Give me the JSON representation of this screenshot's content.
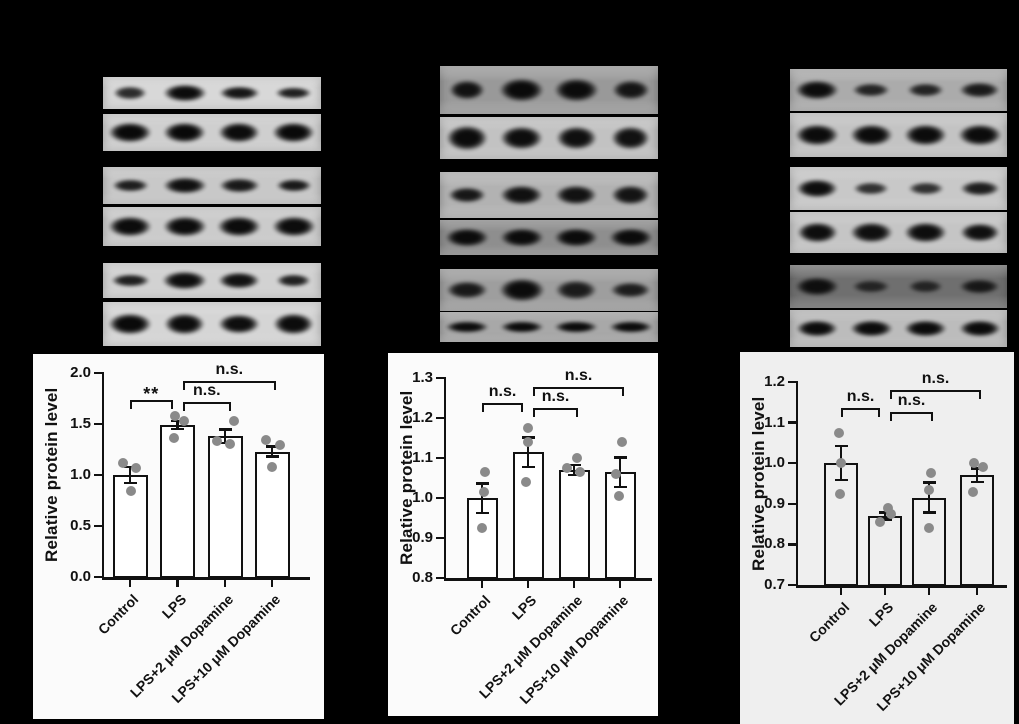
{
  "figure": {
    "background": "#000000"
  },
  "blots": {
    "lane_count": 4,
    "columns": [
      {
        "name": "left",
        "strips": [
          {
            "role": "target-protein",
            "bg": "#d8d8d8",
            "bands": [
              {
                "i": 0.82,
                "w": 0.62,
                "h": 0.42
              },
              {
                "i": 0.97,
                "w": 0.8,
                "h": 0.55
              },
              {
                "i": 0.92,
                "w": 0.76,
                "h": 0.45
              },
              {
                "i": 0.88,
                "w": 0.68,
                "h": 0.4
              }
            ]
          },
          {
            "role": "loading-control",
            "bg": "#cfcfcf",
            "bands": [
              {
                "i": 0.98,
                "w": 0.8,
                "h": 0.58
              },
              {
                "i": 0.98,
                "w": 0.78,
                "h": 0.55
              },
              {
                "i": 0.97,
                "w": 0.78,
                "h": 0.55
              },
              {
                "i": 0.98,
                "w": 0.78,
                "h": 0.55
              }
            ]
          },
          {
            "role": "target-protein",
            "bg": "#c8c8c8",
            "bands": [
              {
                "i": 0.88,
                "w": 0.68,
                "h": 0.36
              },
              {
                "i": 0.95,
                "w": 0.8,
                "h": 0.46
              },
              {
                "i": 0.9,
                "w": 0.76,
                "h": 0.42
              },
              {
                "i": 0.9,
                "w": 0.66,
                "h": 0.36
              }
            ]
          },
          {
            "role": "loading-control",
            "bg": "#cbcbcb",
            "bands": [
              {
                "i": 0.97,
                "w": 0.8,
                "h": 0.52
              },
              {
                "i": 0.97,
                "w": 0.8,
                "h": 0.52
              },
              {
                "i": 0.97,
                "w": 0.8,
                "h": 0.52
              },
              {
                "i": 0.97,
                "w": 0.8,
                "h": 0.52
              }
            ]
          },
          {
            "role": "target-protein",
            "bg": "#d2d2d2",
            "bands": [
              {
                "i": 0.88,
                "w": 0.72,
                "h": 0.36
              },
              {
                "i": 0.96,
                "w": 0.82,
                "h": 0.52
              },
              {
                "i": 0.94,
                "w": 0.78,
                "h": 0.46
              },
              {
                "i": 0.87,
                "w": 0.64,
                "h": 0.36
              }
            ]
          },
          {
            "role": "loading-control",
            "bg": "#d5d5d5",
            "bands": [
              {
                "i": 0.98,
                "w": 0.8,
                "h": 0.52
              },
              {
                "i": 0.97,
                "w": 0.76,
                "h": 0.48
              },
              {
                "i": 0.96,
                "w": 0.78,
                "h": 0.46
              },
              {
                "i": 0.97,
                "w": 0.76,
                "h": 0.48
              }
            ]
          }
        ]
      },
      {
        "name": "middle",
        "strips": [
          {
            "role": "target-protein",
            "bg": "#999999",
            "bands": [
              {
                "i": 0.92,
                "w": 0.66,
                "h": 0.4
              },
              {
                "i": 0.97,
                "w": 0.82,
                "h": 0.5
              },
              {
                "i": 0.96,
                "w": 0.82,
                "h": 0.48
              },
              {
                "i": 0.9,
                "w": 0.7,
                "h": 0.42
              }
            ]
          },
          {
            "role": "loading-control",
            "bg": "#c2c2c2",
            "bands": [
              {
                "i": 0.97,
                "w": 0.78,
                "h": 0.6
              },
              {
                "i": 0.96,
                "w": 0.78,
                "h": 0.55
              },
              {
                "i": 0.95,
                "w": 0.76,
                "h": 0.55
              },
              {
                "i": 0.94,
                "w": 0.72,
                "h": 0.55
              }
            ]
          },
          {
            "role": "target-protein",
            "bg": "#b2b2b2",
            "bands": [
              {
                "i": 0.9,
                "w": 0.7,
                "h": 0.36
              },
              {
                "i": 0.94,
                "w": 0.78,
                "h": 0.42
              },
              {
                "i": 0.93,
                "w": 0.78,
                "h": 0.44
              },
              {
                "i": 0.92,
                "w": 0.72,
                "h": 0.44
              }
            ]
          },
          {
            "role": "loading-control",
            "bg": "#8e8e8e",
            "bands": [
              {
                "i": 0.96,
                "w": 0.8,
                "h": 0.55
              },
              {
                "i": 0.96,
                "w": 0.8,
                "h": 0.55
              },
              {
                "i": 0.96,
                "w": 0.8,
                "h": 0.55
              },
              {
                "i": 0.96,
                "w": 0.8,
                "h": 0.55
              }
            ]
          },
          {
            "role": "target-protein",
            "bg": "#9e9e9e",
            "bands": [
              {
                "i": 0.88,
                "w": 0.78,
                "h": 0.42
              },
              {
                "i": 0.96,
                "w": 0.84,
                "h": 0.55
              },
              {
                "i": 0.86,
                "w": 0.78,
                "h": 0.48
              },
              {
                "i": 0.85,
                "w": 0.76,
                "h": 0.4
              }
            ]
          },
          {
            "role": "loading-control",
            "bg": "#a8a8a8",
            "bands": [
              {
                "i": 0.97,
                "w": 0.8,
                "h": 0.42
              },
              {
                "i": 0.97,
                "w": 0.8,
                "h": 0.42
              },
              {
                "i": 0.97,
                "w": 0.8,
                "h": 0.42
              },
              {
                "i": 0.97,
                "w": 0.8,
                "h": 0.42
              }
            ]
          }
        ]
      },
      {
        "name": "right",
        "strips": [
          {
            "role": "target-protein",
            "bg": "#ababab",
            "bands": [
              {
                "i": 0.96,
                "w": 0.8,
                "h": 0.48
              },
              {
                "i": 0.82,
                "w": 0.7,
                "h": 0.32
              },
              {
                "i": 0.82,
                "w": 0.68,
                "h": 0.32
              },
              {
                "i": 0.88,
                "w": 0.76,
                "h": 0.4
              }
            ]
          },
          {
            "role": "loading-control",
            "bg": "#c3c3c3",
            "bands": [
              {
                "i": 0.97,
                "w": 0.8,
                "h": 0.52
              },
              {
                "i": 0.97,
                "w": 0.8,
                "h": 0.52
              },
              {
                "i": 0.97,
                "w": 0.8,
                "h": 0.52
              },
              {
                "i": 0.97,
                "w": 0.8,
                "h": 0.52
              }
            ]
          },
          {
            "role": "target-protein",
            "bg": "#c8c8c8",
            "bands": [
              {
                "i": 0.96,
                "w": 0.78,
                "h": 0.42
              },
              {
                "i": 0.78,
                "w": 0.66,
                "h": 0.28
              },
              {
                "i": 0.78,
                "w": 0.66,
                "h": 0.28
              },
              {
                "i": 0.88,
                "w": 0.74,
                "h": 0.34
              }
            ]
          },
          {
            "role": "loading-control",
            "bg": "#c5c5c5",
            "bands": [
              {
                "i": 0.96,
                "w": 0.76,
                "h": 0.5
              },
              {
                "i": 0.95,
                "w": 0.78,
                "h": 0.5
              },
              {
                "i": 0.96,
                "w": 0.8,
                "h": 0.52
              },
              {
                "i": 0.95,
                "w": 0.74,
                "h": 0.48
              }
            ]
          },
          {
            "role": "target-protein",
            "bg": "#6f6f6f",
            "bands": [
              {
                "i": 0.92,
                "w": 0.8,
                "h": 0.42
              },
              {
                "i": 0.72,
                "w": 0.7,
                "h": 0.3
              },
              {
                "i": 0.72,
                "w": 0.64,
                "h": 0.28
              },
              {
                "i": 0.84,
                "w": 0.76,
                "h": 0.36
              }
            ]
          },
          {
            "role": "loading-control",
            "bg": "#bcbcbc",
            "bands": [
              {
                "i": 0.97,
                "w": 0.78,
                "h": 0.44
              },
              {
                "i": 0.97,
                "w": 0.78,
                "h": 0.44
              },
              {
                "i": 0.97,
                "w": 0.78,
                "h": 0.44
              },
              {
                "i": 0.97,
                "w": 0.78,
                "h": 0.44
              }
            ]
          }
        ]
      }
    ]
  },
  "chart_data": [
    {
      "type": "bar",
      "ylabel": "Relative protein level",
      "categories": [
        "Control",
        "LPS",
        "LPS+2 μM Dopamine",
        "LPS+10 μM Dopamine"
      ],
      "values": [
        1.0,
        1.49,
        1.38,
        1.23
      ],
      "errors": [
        0.09,
        0.05,
        0.08,
        0.06
      ],
      "points": [
        [
          [
            1.12,
            -7
          ],
          [
            1.07,
            6
          ],
          [
            0.84,
            1
          ]
        ],
        [
          [
            1.58,
            -3
          ],
          [
            1.53,
            6
          ],
          [
            1.36,
            -4
          ]
        ],
        [
          [
            1.53,
            9
          ],
          [
            1.33,
            -8
          ],
          [
            1.3,
            5
          ]
        ],
        [
          [
            1.34,
            -6
          ],
          [
            1.29,
            8
          ],
          [
            1.08,
            0
          ]
        ]
      ],
      "ylim": [
        0.0,
        2.0
      ],
      "yticks": [
        "0.0",
        "0.5",
        "1.0",
        "1.5",
        "2.0"
      ],
      "significance": [
        {
          "label": "**",
          "from": 0,
          "to": 1,
          "y": 1.74,
          "from_offset": 0,
          "to_offset": -5
        },
        {
          "label": "n.s.",
          "from": 1,
          "to": 2,
          "y": 1.72,
          "from_offset": 5,
          "to_offset": 6
        },
        {
          "label": "n.s.",
          "from": 1,
          "to": 3,
          "y": 1.92,
          "from_offset": 5,
          "to_offset": 4
        }
      ],
      "grid": false,
      "colors": {
        "panel_bg": "#fbfbfb",
        "bar_fill": "#ffffff",
        "bar_border": "#111111",
        "points": "#8a8a8a",
        "axis": "#111111",
        "text": "#111111"
      }
    },
    {
      "type": "bar",
      "ylabel": "Relative protein level",
      "categories": [
        "Control",
        "LPS",
        "LPS+2 μM Dopamine",
        "LPS+10 μM Dopamine"
      ],
      "values": [
        1.0,
        1.115,
        1.07,
        1.065
      ],
      "errors": [
        0.04,
        0.04,
        0.016,
        0.04
      ],
      "points": [
        [
          [
            1.065,
            3
          ],
          [
            1.015,
            2
          ],
          [
            0.925,
            0
          ]
        ],
        [
          [
            1.175,
            0
          ],
          [
            1.14,
            0
          ],
          [
            1.04,
            -2
          ]
        ],
        [
          [
            1.1,
            3
          ],
          [
            1.075,
            -7
          ],
          [
            1.065,
            6
          ]
        ],
        [
          [
            1.14,
            2
          ],
          [
            1.06,
            -4
          ],
          [
            1.005,
            -1
          ]
        ]
      ],
      "ylim": [
        0.8,
        1.3
      ],
      "yticks": [
        "0.8",
        "0.9",
        "1.0",
        "1.1",
        "1.2",
        "1.3"
      ],
      "significance": [
        {
          "label": "n.s.",
          "from": 0,
          "to": 1,
          "y": 1.238,
          "from_offset": 0,
          "to_offset": -5
        },
        {
          "label": "n.s.",
          "from": 1,
          "to": 2,
          "y": 1.226,
          "from_offset": 5,
          "to_offset": 4
        },
        {
          "label": "n.s.",
          "from": 1,
          "to": 3,
          "y": 1.278,
          "from_offset": 5,
          "to_offset": 4
        }
      ],
      "grid": false,
      "colors": {
        "panel_bg": "#fbfbfb",
        "bar_fill": "#ffffff",
        "bar_border": "#111111",
        "points": "#8a8a8a",
        "axis": "#111111",
        "text": "#111111"
      }
    },
    {
      "type": "bar",
      "ylabel": "Relative protein level",
      "categories": [
        "Control",
        "LPS",
        "LPS+2 μM Dopamine",
        "LPS+10 μM Dopamine"
      ],
      "values": [
        1.0,
        0.87,
        0.915,
        0.97
      ],
      "errors": [
        0.045,
        0.012,
        0.04,
        0.02
      ],
      "points": [
        [
          [
            1.075,
            -2
          ],
          [
            1.0,
            0
          ],
          [
            0.925,
            -1
          ]
        ],
        [
          [
            0.89,
            3
          ],
          [
            0.875,
            6
          ],
          [
            0.855,
            -5
          ]
        ],
        [
          [
            0.975,
            2
          ],
          [
            0.935,
            0
          ],
          [
            0.84,
            0
          ]
        ],
        [
          [
            1.0,
            -3
          ],
          [
            0.99,
            6
          ],
          [
            0.93,
            -4
          ]
        ]
      ],
      "ylim": [
        0.7,
        1.2
      ],
      "yticks": [
        "0.7",
        "0.8",
        "0.9",
        "1.0",
        "1.1",
        "1.2"
      ],
      "significance": [
        {
          "label": "n.s.",
          "from": 0,
          "to": 1,
          "y": 1.136,
          "from_offset": 0,
          "to_offset": -5
        },
        {
          "label": "n.s.",
          "from": 1,
          "to": 2,
          "y": 1.126,
          "from_offset": 5,
          "to_offset": 4
        },
        {
          "label": "n.s.",
          "from": 1,
          "to": 3,
          "y": 1.18,
          "from_offset": 5,
          "to_offset": 4
        }
      ],
      "grid": false,
      "colors": {
        "panel_bg": "#efefef",
        "bar_fill": "#efefef",
        "bar_border": "#111111",
        "points": "#8a8a8a",
        "axis": "#111111",
        "text": "#111111"
      }
    }
  ]
}
